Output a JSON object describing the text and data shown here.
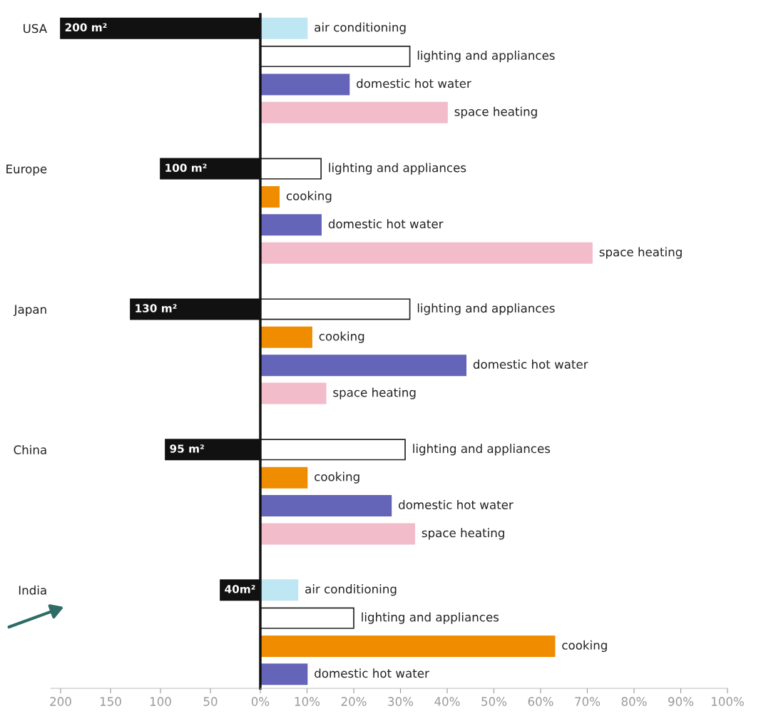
{
  "chart_data": [
    {
      "type": "bar",
      "orientation": "horizontal",
      "categories": [
        "USA",
        null,
        null,
        null,
        null,
        "Europe",
        null,
        null,
        null,
        null,
        "Japan",
        null,
        null,
        null,
        null,
        "China",
        null,
        null,
        null,
        null,
        "India",
        null,
        null,
        null
      ],
      "series": [
        {
          "color": "#111111",
          "values": [
            200,
            null,
            null,
            null,
            null,
            100,
            null,
            null,
            null,
            null,
            130,
            null,
            null,
            null,
            null,
            95,
            null,
            null,
            null,
            null,
            40,
            null,
            null,
            null
          ],
          "value_labels": [
            "200 m²",
            null,
            null,
            null,
            null,
            "100 m²",
            null,
            null,
            null,
            null,
            "130 m²",
            null,
            null,
            null,
            null,
            "95 m²",
            null,
            null,
            null,
            null,
            "40m²",
            null,
            null,
            null
          ]
        }
      ],
      "xlim": [
        210,
        0
      ],
      "xticks": [
        200,
        150,
        100,
        50
      ]
    },
    {
      "type": "bar",
      "orientation": "horizontal",
      "categories": [
        null,
        null,
        null,
        null,
        null,
        null,
        null,
        null,
        null,
        null,
        null,
        null,
        null,
        null,
        null,
        null,
        null,
        null,
        null,
        null,
        null,
        null,
        null,
        null
      ],
      "series": [
        {
          "name": "air conditioning",
          "color": "#bfe6f3",
          "values": [
            10,
            null,
            null,
            null,
            null,
            null,
            null,
            null,
            null,
            null,
            null,
            null,
            null,
            null,
            null,
            null,
            null,
            null,
            null,
            null,
            8,
            null,
            null,
            null
          ]
        },
        {
          "name": "lighting and appliances",
          "color": "#ffffff",
          "values": [
            null,
            32,
            null,
            null,
            null,
            13,
            null,
            null,
            null,
            null,
            32,
            null,
            null,
            null,
            null,
            31,
            null,
            null,
            null,
            null,
            null,
            20,
            null,
            null
          ]
        },
        {
          "name": "cooking",
          "color": "#f08c00",
          "values": [
            null,
            null,
            null,
            null,
            null,
            null,
            4,
            null,
            null,
            null,
            null,
            11,
            null,
            null,
            null,
            null,
            10,
            null,
            null,
            null,
            null,
            null,
            63,
            null
          ]
        },
        {
          "name": "domestic hot water",
          "color": "#6464b8",
          "values": [
            null,
            null,
            19,
            null,
            null,
            null,
            null,
            13,
            null,
            null,
            null,
            null,
            44,
            null,
            null,
            null,
            null,
            28,
            null,
            null,
            null,
            null,
            null,
            10
          ]
        },
        {
          "name": "space heating",
          "color": "#f2bccb",
          "values": [
            null,
            null,
            null,
            40,
            null,
            null,
            null,
            null,
            71,
            null,
            null,
            null,
            null,
            14,
            null,
            null,
            null,
            null,
            33,
            null,
            null,
            null,
            null,
            null
          ]
        }
      ],
      "xlim": [
        0,
        100
      ],
      "xticks": [
        {
          "value": 0,
          "label": "0%"
        },
        {
          "value": 10,
          "label": "10%"
        },
        {
          "value": 20,
          "label": "20%"
        },
        {
          "value": 30,
          "label": "30%"
        },
        {
          "value": 40,
          "label": "40%"
        },
        {
          "value": 50,
          "label": "50%"
        },
        {
          "value": 60,
          "label": "60%"
        },
        {
          "value": 70,
          "label": "70%"
        },
        {
          "value": 80,
          "label": "80%"
        },
        {
          "value": 90,
          "label": "90%"
        },
        {
          "value": 100,
          "label": "100%"
        }
      ],
      "tick_labels": "x"
    }
  ]
}
